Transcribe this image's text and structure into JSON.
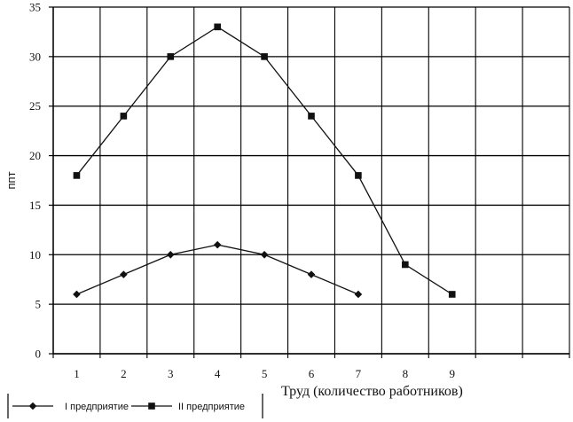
{
  "chart_data": {
    "type": "line",
    "categories": [
      "1",
      "2",
      "3",
      "4",
      "5",
      "6",
      "7",
      "8",
      "9",
      "",
      ""
    ],
    "x_tick_labels": [
      "1",
      "2",
      "3",
      "4",
      "5",
      "6",
      "7",
      "8",
      "9"
    ],
    "ylabel": "ппт",
    "xlabel": "Труд (количество работников)",
    "ylim": [
      0,
      35
    ],
    "y_ticks": [
      0,
      5,
      10,
      15,
      20,
      25,
      30,
      35
    ],
    "grid": true,
    "legend_position": "bottom-left",
    "series": [
      {
        "name": "I предприятие",
        "marker": "diamond",
        "color": "#111111",
        "x": [
          1,
          2,
          3,
          4,
          5,
          6,
          7
        ],
        "values": [
          6,
          8,
          10,
          11,
          10,
          8,
          6
        ]
      },
      {
        "name": "II предприятие",
        "marker": "square",
        "color": "#111111",
        "x": [
          1,
          2,
          3,
          4,
          5,
          6,
          7,
          8,
          9
        ],
        "values": [
          18,
          24,
          30,
          33,
          30,
          24,
          18,
          9,
          6
        ]
      }
    ]
  }
}
